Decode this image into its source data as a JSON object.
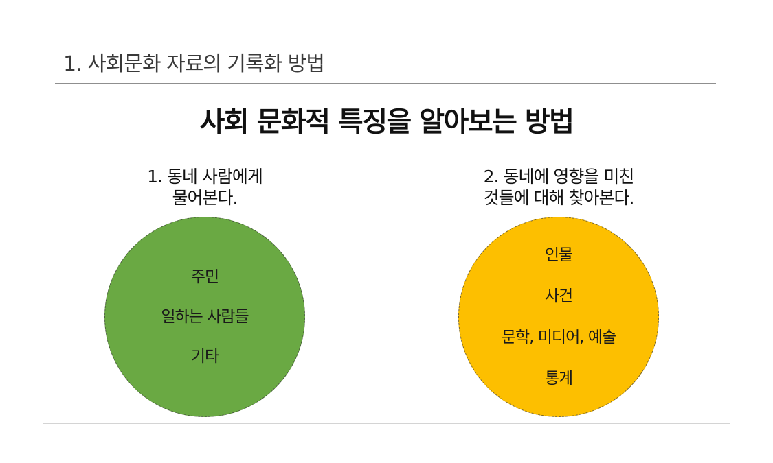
{
  "slide": {
    "section_title": "1. 사회문화 자료의 기록화 방법",
    "main_heading": "사회 문화적 특징을 알아보는 방법",
    "columns": [
      {
        "heading_lines": [
          "1. 동네 사람에게",
          "물어본다."
        ],
        "circle_color": "#6aa943",
        "items": [
          "주민",
          "일하는 사람들",
          "기타"
        ]
      },
      {
        "heading_lines": [
          "2. 동네에 영향을 미친",
          "것들에 대해 찾아본다."
        ],
        "circle_color": "#fdbf00",
        "items": [
          "인물",
          "사건",
          "문학, 미디어, 예술",
          "통계"
        ]
      }
    ]
  }
}
